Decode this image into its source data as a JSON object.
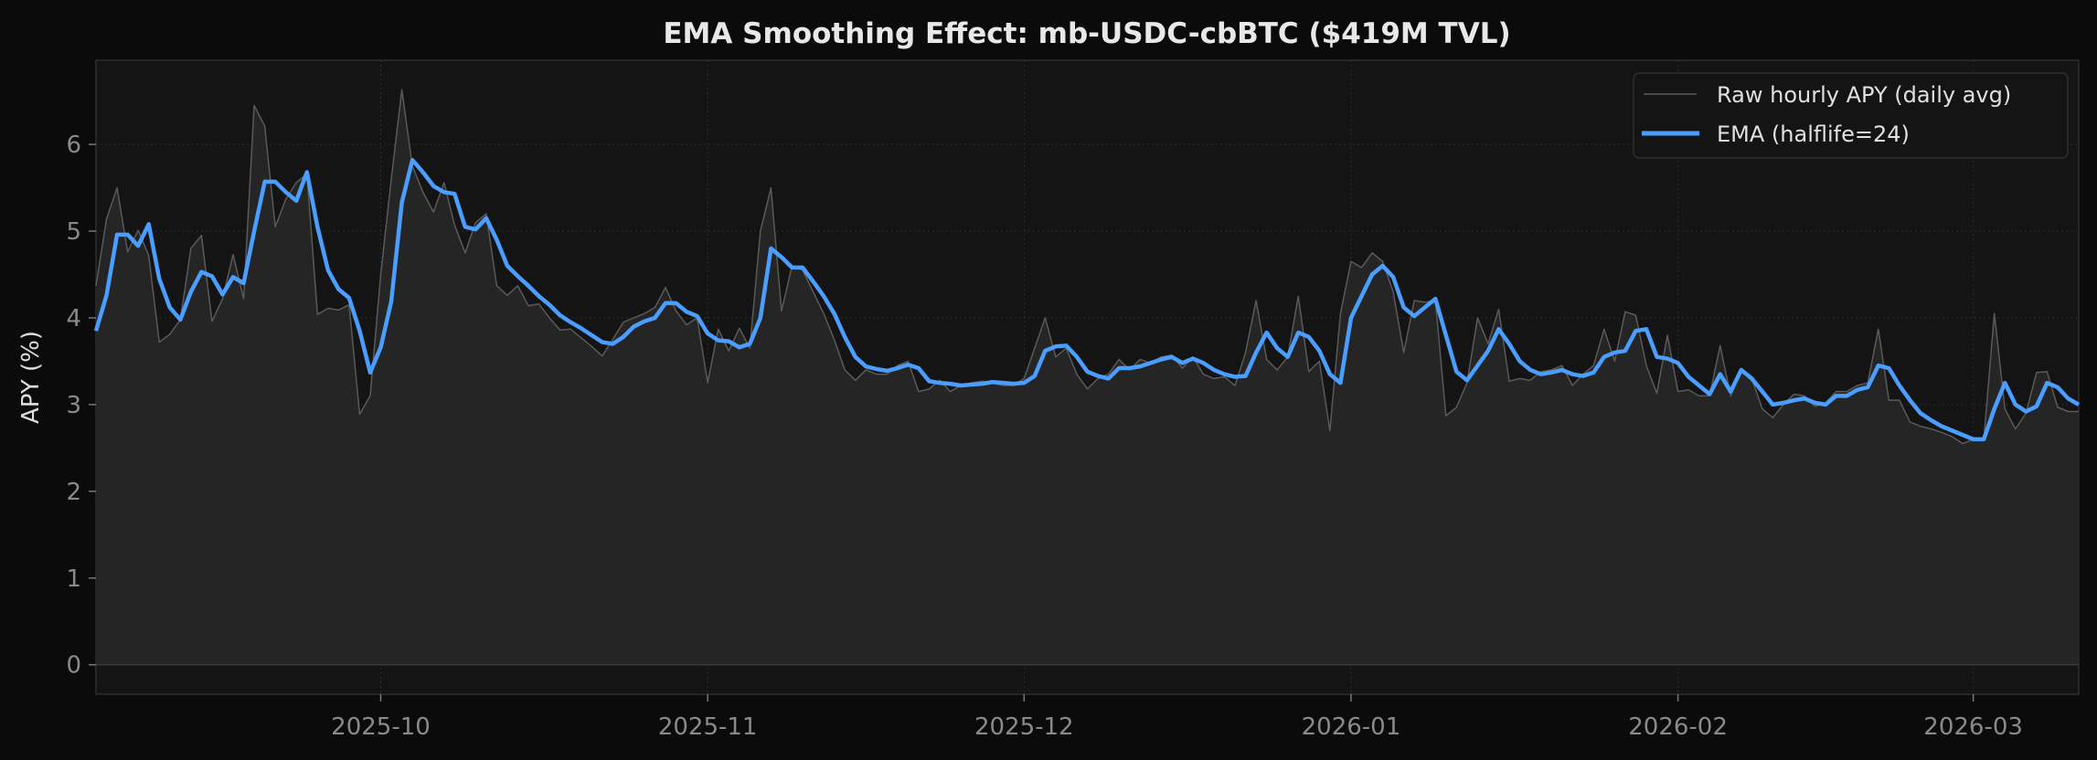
{
  "chart_data": {
    "type": "line",
    "title": "EMA Smoothing Effect: mb-USDC-cbBTC ($419M TVL)",
    "xlabel": "",
    "ylabel": "APY (%)",
    "xlim": [
      "2025-09-04",
      "2026-03-11"
    ],
    "ylim": [
      -0.34,
      6.97
    ],
    "yticks": [
      0,
      1,
      2,
      3,
      4,
      5,
      6
    ],
    "xticks": [
      "2025-10-01",
      "2025-11-01",
      "2025-12-01",
      "2026-01-01",
      "2026-02-01",
      "2026-03-01"
    ],
    "xtick_labels": [
      "2025-10",
      "2025-11",
      "2025-12",
      "2026-01",
      "2026-02",
      "2026-03"
    ],
    "grid": true,
    "legend_placement": "top-right",
    "colors": {
      "figure_bg": "#0b0b0b",
      "axes_bg": "#141414",
      "fill": "#252525",
      "raw": "#5a5a5a",
      "ema": "#4a9eff",
      "grid": "#2c2c2c"
    },
    "x": [
      "2025-09-04",
      "2025-09-05",
      "2025-09-06",
      "2025-09-07",
      "2025-09-08",
      "2025-09-09",
      "2025-09-10",
      "2025-09-11",
      "2025-09-12",
      "2025-09-13",
      "2025-09-14",
      "2025-09-15",
      "2025-09-16",
      "2025-09-17",
      "2025-09-18",
      "2025-09-19",
      "2025-09-20",
      "2025-09-21",
      "2025-09-22",
      "2025-09-23",
      "2025-09-24",
      "2025-09-25",
      "2025-09-26",
      "2025-09-27",
      "2025-09-28",
      "2025-09-29",
      "2025-09-30",
      "2025-10-01",
      "2025-10-02",
      "2025-10-03",
      "2025-10-04",
      "2025-10-05",
      "2025-10-06",
      "2025-10-07",
      "2025-10-08",
      "2025-10-09",
      "2025-10-10",
      "2025-10-11",
      "2025-10-12",
      "2025-10-13",
      "2025-10-14",
      "2025-10-15",
      "2025-10-16",
      "2025-10-17",
      "2025-10-18",
      "2025-10-19",
      "2025-10-20",
      "2025-10-21",
      "2025-10-22",
      "2025-10-23",
      "2025-10-24",
      "2025-10-25",
      "2025-10-26",
      "2025-10-27",
      "2025-10-28",
      "2025-10-29",
      "2025-10-30",
      "2025-10-31",
      "2025-11-01",
      "2025-11-02",
      "2025-11-03",
      "2025-11-04",
      "2025-11-05",
      "2025-11-06",
      "2025-11-07",
      "2025-11-08",
      "2025-11-09",
      "2025-11-10",
      "2025-11-11",
      "2025-11-12",
      "2025-11-13",
      "2025-11-14",
      "2025-11-15",
      "2025-11-16",
      "2025-11-17",
      "2025-11-18",
      "2025-11-19",
      "2025-11-20",
      "2025-11-21",
      "2025-11-22",
      "2025-11-23",
      "2025-11-24",
      "2025-11-25",
      "2025-11-26",
      "2025-11-27",
      "2025-11-28",
      "2025-11-29",
      "2025-11-30",
      "2025-12-01",
      "2025-12-02",
      "2025-12-03",
      "2025-12-04",
      "2025-12-05",
      "2025-12-06",
      "2025-12-07",
      "2025-12-08",
      "2025-12-09",
      "2025-12-10",
      "2025-12-11",
      "2025-12-12",
      "2025-12-13",
      "2025-12-14",
      "2025-12-15",
      "2025-12-16",
      "2025-12-17",
      "2025-12-18",
      "2025-12-19",
      "2025-12-20",
      "2025-12-21",
      "2025-12-22",
      "2025-12-23",
      "2025-12-24",
      "2025-12-25",
      "2025-12-26",
      "2025-12-27",
      "2025-12-28",
      "2025-12-29",
      "2025-12-30",
      "2025-12-31",
      "2026-01-01",
      "2026-01-02",
      "2026-01-03",
      "2026-01-04",
      "2026-01-05",
      "2026-01-06",
      "2026-01-07",
      "2026-01-08",
      "2026-01-09",
      "2026-01-10",
      "2026-01-11",
      "2026-01-12",
      "2026-01-13",
      "2026-01-14",
      "2026-01-15",
      "2026-01-16",
      "2026-01-17",
      "2026-01-18",
      "2026-01-19",
      "2026-01-20",
      "2026-01-21",
      "2026-01-22",
      "2026-01-23",
      "2026-01-24",
      "2026-01-25",
      "2026-01-26",
      "2026-01-27",
      "2026-01-28",
      "2026-01-29",
      "2026-01-30",
      "2026-01-31",
      "2026-02-01",
      "2026-02-02",
      "2026-02-03",
      "2026-02-04",
      "2026-02-05",
      "2026-02-06",
      "2026-02-07",
      "2026-02-08",
      "2026-02-09",
      "2026-02-10",
      "2026-02-11",
      "2026-02-12",
      "2026-02-13",
      "2026-02-14",
      "2026-02-15",
      "2026-02-16",
      "2026-02-17",
      "2026-02-18",
      "2026-02-19",
      "2026-02-20",
      "2026-02-21",
      "2026-02-22",
      "2026-02-23",
      "2026-02-24",
      "2026-02-25",
      "2026-02-26",
      "2026-02-27",
      "2026-02-28",
      "2026-03-01",
      "2026-03-02",
      "2026-03-03",
      "2026-03-04",
      "2026-03-05",
      "2026-03-06",
      "2026-03-07",
      "2026-03-08",
      "2026-03-09",
      "2026-03-10",
      "2026-03-11"
    ],
    "series": [
      {
        "name": "Raw hourly APY (daily avg)",
        "values": [
          4.37,
          5.14,
          5.5,
          4.76,
          5.01,
          4.72,
          3.72,
          3.81,
          3.98,
          4.8,
          4.95,
          3.96,
          4.22,
          4.73,
          4.22,
          6.45,
          6.21,
          5.05,
          5.37,
          5.56,
          5.66,
          4.04,
          4.11,
          4.09,
          4.15,
          2.89,
          3.1,
          4.5,
          5.6,
          6.63,
          5.75,
          5.45,
          5.22,
          5.56,
          5.07,
          4.75,
          5.1,
          5.2,
          4.37,
          4.26,
          4.37,
          4.14,
          4.16,
          4.0,
          3.86,
          3.87,
          3.77,
          3.67,
          3.56,
          3.75,
          3.95,
          4.0,
          4.05,
          4.12,
          4.35,
          4.08,
          3.92,
          4.0,
          3.25,
          3.87,
          3.62,
          3.88,
          3.65,
          5.0,
          5.5,
          4.08,
          4.6,
          4.55,
          4.3,
          4.05,
          3.75,
          3.4,
          3.28,
          3.4,
          3.35,
          3.35,
          3.45,
          3.5,
          3.15,
          3.18,
          3.28,
          3.15,
          3.22,
          3.25,
          3.27,
          3.25,
          3.22,
          3.22,
          3.3,
          3.65,
          4.0,
          3.55,
          3.65,
          3.35,
          3.18,
          3.3,
          3.35,
          3.52,
          3.4,
          3.52,
          3.48,
          3.55,
          3.57,
          3.42,
          3.55,
          3.35,
          3.3,
          3.32,
          3.22,
          3.6,
          4.2,
          3.52,
          3.4,
          3.55,
          4.25,
          3.38,
          3.5,
          2.7,
          4.05,
          4.65,
          4.58,
          4.75,
          4.65,
          4.3,
          3.6,
          4.2,
          4.18,
          4.2,
          2.87,
          2.97,
          3.25,
          4.0,
          3.7,
          4.1,
          3.27,
          3.3,
          3.28,
          3.38,
          3.4,
          3.45,
          3.22,
          3.35,
          3.45,
          3.87,
          3.5,
          4.07,
          4.03,
          3.45,
          3.13,
          3.8,
          3.15,
          3.17,
          3.1,
          3.1,
          3.68,
          3.1,
          3.4,
          3.3,
          2.95,
          2.85,
          3.0,
          3.12,
          3.1,
          2.98,
          3.02,
          3.15,
          3.15,
          3.22,
          3.25,
          3.87,
          3.05,
          3.05,
          2.8,
          2.75,
          2.72,
          2.68,
          2.63,
          2.55,
          2.6,
          2.6,
          4.05,
          2.95,
          2.72,
          2.9,
          3.37,
          3.38,
          2.97,
          2.92,
          2.92
        ]
      },
      {
        "name": "EMA (halflife=24)",
        "values": [
          3.85,
          4.26,
          4.96,
          4.96,
          4.83,
          5.08,
          4.45,
          4.12,
          3.98,
          4.3,
          4.53,
          4.48,
          4.27,
          4.47,
          4.4,
          5.0,
          5.57,
          5.57,
          5.45,
          5.35,
          5.68,
          5.05,
          4.55,
          4.33,
          4.23,
          3.85,
          3.37,
          3.66,
          4.19,
          5.33,
          5.82,
          5.68,
          5.52,
          5.45,
          5.43,
          5.05,
          5.02,
          5.15,
          4.9,
          4.6,
          4.48,
          4.37,
          4.25,
          4.15,
          4.03,
          3.95,
          3.88,
          3.8,
          3.72,
          3.7,
          3.78,
          3.9,
          3.96,
          4.0,
          4.17,
          4.17,
          4.07,
          4.02,
          3.82,
          3.74,
          3.73,
          3.66,
          3.7,
          4.0,
          4.8,
          4.7,
          4.58,
          4.58,
          4.42,
          4.25,
          4.05,
          3.78,
          3.55,
          3.44,
          3.41,
          3.39,
          3.42,
          3.46,
          3.42,
          3.27,
          3.25,
          3.24,
          3.22,
          3.23,
          3.24,
          3.26,
          3.25,
          3.24,
          3.25,
          3.33,
          3.62,
          3.67,
          3.68,
          3.55,
          3.38,
          3.33,
          3.3,
          3.42,
          3.42,
          3.44,
          3.48,
          3.52,
          3.55,
          3.48,
          3.53,
          3.48,
          3.4,
          3.35,
          3.32,
          3.33,
          3.6,
          3.83,
          3.65,
          3.55,
          3.83,
          3.78,
          3.62,
          3.35,
          3.25,
          4.0,
          4.25,
          4.5,
          4.6,
          4.47,
          4.12,
          4.02,
          4.12,
          4.22,
          3.8,
          3.38,
          3.28,
          3.45,
          3.62,
          3.87,
          3.7,
          3.5,
          3.4,
          3.35,
          3.37,
          3.4,
          3.35,
          3.33,
          3.37,
          3.55,
          3.6,
          3.62,
          3.85,
          3.87,
          3.55,
          3.53,
          3.48,
          3.32,
          3.22,
          3.12,
          3.35,
          3.15,
          3.4,
          3.3,
          3.15,
          3.0,
          3.02,
          3.05,
          3.07,
          3.02,
          3.0,
          3.1,
          3.1,
          3.17,
          3.2,
          3.45,
          3.42,
          3.22,
          3.05,
          2.9,
          2.82,
          2.75,
          2.7,
          2.65,
          2.6,
          2.6,
          2.95,
          3.25,
          3.0,
          2.92,
          2.98,
          3.25,
          3.2,
          3.07,
          3.0
        ]
      }
    ]
  }
}
